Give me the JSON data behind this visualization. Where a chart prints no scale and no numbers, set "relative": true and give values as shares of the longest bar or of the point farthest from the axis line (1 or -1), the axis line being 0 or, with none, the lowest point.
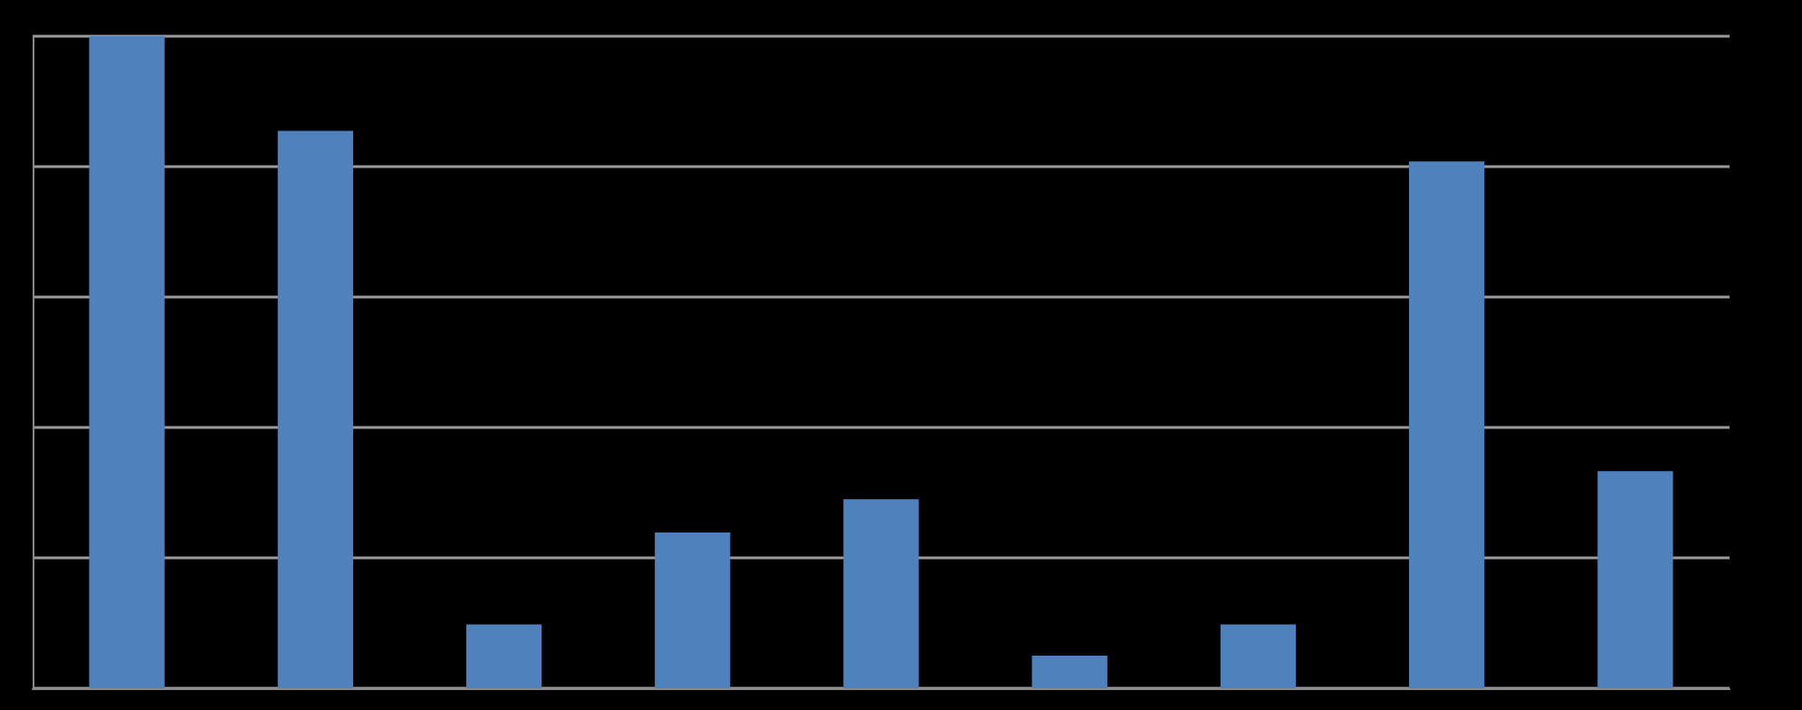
{
  "chart_data": {
    "type": "bar",
    "relative": true,
    "categories": [
      null,
      null,
      null,
      null,
      null,
      null,
      null,
      null,
      null
    ],
    "values": [
      1,
      0.855,
      0.098,
      0.239,
      0.29,
      0.05,
      0.098,
      0.808,
      0.333
    ],
    "color": "#4f81bd",
    "grid": "y"
  }
}
